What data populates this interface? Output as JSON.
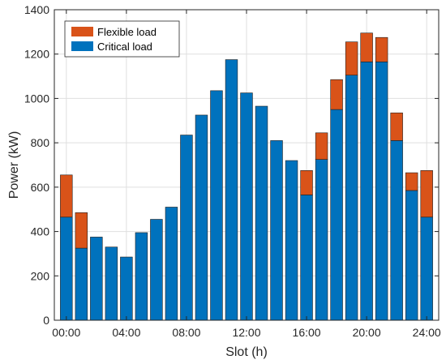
{
  "chart_data": {
    "type": "bar",
    "stacked": true,
    "xlabel": "Slot (h)",
    "ylabel": "Power (kW)",
    "ylim": [
      0,
      1400
    ],
    "yticks": [
      0,
      200,
      400,
      600,
      800,
      1000,
      1200,
      1400
    ],
    "x": [
      0,
      1,
      2,
      3,
      4,
      5,
      6,
      7,
      8,
      9,
      10,
      11,
      12,
      13,
      14,
      15,
      16,
      17,
      18,
      19,
      20,
      21,
      22,
      23,
      24
    ],
    "xlim": [
      -0.8,
      24.8
    ],
    "xtick_values": [
      0,
      4,
      8,
      12,
      16,
      20,
      24
    ],
    "xtick_labels": [
      "00:00",
      "04:00",
      "08:00",
      "12:00",
      "16:00",
      "20:00",
      "24:00"
    ],
    "grid": true,
    "legend_position": "top-left",
    "series": [
      {
        "name": "Critical load",
        "color": "#0072BD",
        "values": [
          465,
          325,
          375,
          330,
          285,
          395,
          455,
          510,
          835,
          925,
          1035,
          1175,
          1025,
          965,
          810,
          720,
          565,
          725,
          950,
          1105,
          1165,
          1165,
          810,
          585,
          465
        ]
      },
      {
        "name": "Flexible load",
        "color": "#D95319",
        "values": [
          190,
          160,
          0,
          0,
          0,
          0,
          0,
          0,
          0,
          0,
          0,
          0,
          0,
          0,
          0,
          0,
          110,
          120,
          135,
          150,
          130,
          110,
          125,
          80,
          210
        ]
      }
    ],
    "legend": [
      "Flexible load",
      "Critical load"
    ]
  }
}
